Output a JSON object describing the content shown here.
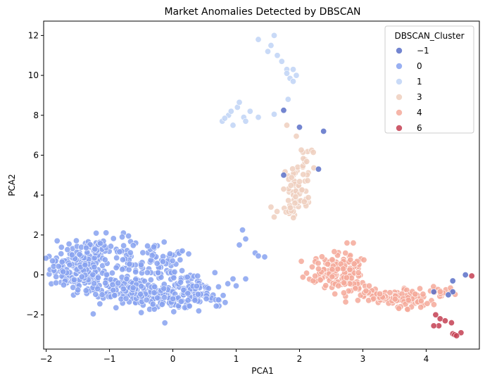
{
  "chart_data": {
    "type": "scatter",
    "title": "Market Anomalies Detected by DBSCAN",
    "xlabel": "PCA1",
    "ylabel": "PCA2",
    "xlim": [
      -2.04,
      4.84
    ],
    "ylim": [
      -3.72,
      12.72
    ],
    "xticks": [
      -2,
      -1,
      0,
      1,
      2,
      3,
      4
    ],
    "yticks": [
      -2,
      0,
      2,
      4,
      6,
      8,
      10,
      12
    ],
    "xtick_labels": [
      "−2",
      "−1",
      "0",
      "1",
      "2",
      "3",
      "4"
    ],
    "ytick_labels": [
      "−2",
      "0",
      "2",
      "4",
      "6",
      "8",
      "10",
      "12"
    ],
    "grid": false,
    "legend": {
      "title": "DBSCAN_Cluster",
      "position": "top-right"
    },
    "series": [
      {
        "name": "−1",
        "color": "#5a70c8",
        "points": [
          [
            1.75,
            8.25
          ],
          [
            2.0,
            7.4
          ],
          [
            2.38,
            7.2
          ],
          [
            2.3,
            5.3
          ],
          [
            1.75,
            5.0
          ],
          [
            4.62,
            0.0
          ],
          [
            4.42,
            -0.3
          ],
          [
            4.42,
            -0.85
          ],
          [
            4.35,
            -1.0
          ],
          [
            4.12,
            -0.85
          ]
        ]
      },
      {
        "name": "0",
        "color": "#87a2f0",
        "points": []
      },
      {
        "name": "1",
        "color": "#bfd3f6",
        "points": [
          [
            1.35,
            11.8
          ],
          [
            1.55,
            11.5
          ],
          [
            1.6,
            12.0
          ],
          [
            1.5,
            11.2
          ],
          [
            1.65,
            11.0
          ],
          [
            1.72,
            10.7
          ],
          [
            1.8,
            10.3
          ],
          [
            1.9,
            10.3
          ],
          [
            1.95,
            10.0
          ],
          [
            1.85,
            9.85
          ],
          [
            1.9,
            9.7
          ],
          [
            1.8,
            10.1
          ],
          [
            0.78,
            7.7
          ],
          [
            0.88,
            8.0
          ],
          [
            0.92,
            8.2
          ],
          [
            1.02,
            8.4
          ],
          [
            1.05,
            8.65
          ],
          [
            1.12,
            7.9
          ],
          [
            1.15,
            7.7
          ],
          [
            0.95,
            7.5
          ],
          [
            0.82,
            7.85
          ],
          [
            1.35,
            7.9
          ],
          [
            1.22,
            8.2
          ],
          [
            1.6,
            8.05
          ],
          [
            1.82,
            8.8
          ]
        ]
      },
      {
        "name": "3",
        "color": "#efcfbe",
        "points": []
      },
      {
        "name": "4",
        "color": "#f4a99a",
        "points": []
      },
      {
        "name": "6",
        "color": "#c44052",
        "points": [
          [
            4.15,
            -2.0
          ],
          [
            4.22,
            -2.2
          ],
          [
            4.2,
            -2.55
          ],
          [
            4.12,
            -2.55
          ],
          [
            4.42,
            -2.95
          ],
          [
            4.45,
            -3.0
          ],
          [
            4.55,
            -2.9
          ],
          [
            4.4,
            -2.4
          ],
          [
            4.3,
            -2.3
          ],
          [
            4.72,
            -0.05
          ],
          [
            4.48,
            -3.05
          ]
        ]
      }
    ],
    "series_regions": [
      {
        "name": "0",
        "regions": [
          {
            "cx": -1.5,
            "cy": 0.3,
            "sx": 0.22,
            "sy": 0.5,
            "n": 150
          },
          {
            "cx": -1.2,
            "cy": 1.3,
            "sx": 0.18,
            "sy": 0.35,
            "n": 60
          },
          {
            "cx": -1.0,
            "cy": -0.6,
            "sx": 0.25,
            "sy": 0.4,
            "n": 70
          },
          {
            "cx": -0.7,
            "cy": 0.5,
            "sx": 0.12,
            "sy": 0.5,
            "n": 40
          },
          {
            "cx": -0.5,
            "cy": -1.0,
            "sx": 0.2,
            "sy": 0.35,
            "n": 60
          },
          {
            "cx": -0.2,
            "cy": 0.3,
            "sx": 0.2,
            "sy": 0.55,
            "n": 60
          },
          {
            "cx": 0.0,
            "cy": -1.0,
            "sx": 0.22,
            "sy": 0.35,
            "n": 90
          },
          {
            "cx": 0.3,
            "cy": -0.8,
            "sx": 0.18,
            "sy": 0.45,
            "n": 60
          },
          {
            "cx": 0.6,
            "cy": -1.2,
            "sx": 0.12,
            "sy": 0.2,
            "n": 15
          }
        ],
        "extra": [
          [
            -1.85,
            0.7
          ],
          [
            -1.9,
            0.7
          ],
          [
            -1.75,
            0.65
          ],
          [
            -0.78,
            2.1
          ],
          [
            -0.8,
            1.9
          ],
          [
            -0.7,
            1.95
          ],
          [
            -0.4,
            1.45
          ],
          [
            -0.3,
            1.4
          ],
          [
            0.15,
            1.2
          ],
          [
            0.25,
            1.05
          ],
          [
            1.1,
            2.25
          ],
          [
            1.15,
            1.8
          ],
          [
            1.05,
            1.5
          ],
          [
            1.3,
            1.1
          ],
          [
            1.35,
            0.95
          ],
          [
            1.45,
            0.9
          ],
          [
            1.0,
            -0.55
          ],
          [
            1.15,
            -0.2
          ],
          [
            0.95,
            -0.2
          ],
          [
            0.72,
            -1.25
          ]
        ]
      },
      {
        "name": "3",
        "regions": [
          {
            "cx": 1.93,
            "cy": 4.2,
            "sx": 0.1,
            "sy": 0.9,
            "n": 40
          },
          {
            "cx": 2.1,
            "cy": 5.6,
            "sx": 0.08,
            "sy": 0.7,
            "n": 20
          },
          {
            "cx": 2.05,
            "cy": 3.7,
            "sx": 0.12,
            "sy": 0.3,
            "n": 15
          },
          {
            "cx": 1.82,
            "cy": 3.15,
            "sx": 0.06,
            "sy": 0.12,
            "n": 8
          }
        ],
        "extra": [
          [
            1.8,
            7.5
          ],
          [
            1.95,
            6.95
          ],
          [
            1.55,
            3.4
          ],
          [
            1.6,
            2.9
          ],
          [
            1.75,
            4.3
          ]
        ]
      },
      {
        "name": "4",
        "regions": [
          {
            "cx": 2.5,
            "cy": 0.3,
            "sx": 0.18,
            "sy": 0.35,
            "n": 80
          },
          {
            "cx": 2.75,
            "cy": 0.3,
            "sx": 0.12,
            "sy": 0.45,
            "n": 40
          },
          {
            "cx": 2.65,
            "cy": -0.4,
            "sx": 0.2,
            "sy": 0.25,
            "n": 40
          },
          {
            "cx": 3.4,
            "cy": -1.1,
            "sx": 0.3,
            "sy": 0.2,
            "n": 80
          },
          {
            "cx": 3.8,
            "cy": -1.3,
            "sx": 0.15,
            "sy": 0.2,
            "n": 30
          },
          {
            "cx": 4.2,
            "cy": -0.85,
            "sx": 0.12,
            "sy": 0.12,
            "n": 20
          }
        ],
        "extra": [
          [
            2.2,
            0.4
          ],
          [
            2.3,
            0.3
          ],
          [
            2.85,
            1.6
          ],
          [
            2.75,
            1.6
          ],
          [
            2.7,
            -0.9
          ],
          [
            3.05,
            -0.8
          ],
          [
            3.1,
            -0.55
          ]
        ]
      }
    ],
    "point_alpha": 0.85
  }
}
